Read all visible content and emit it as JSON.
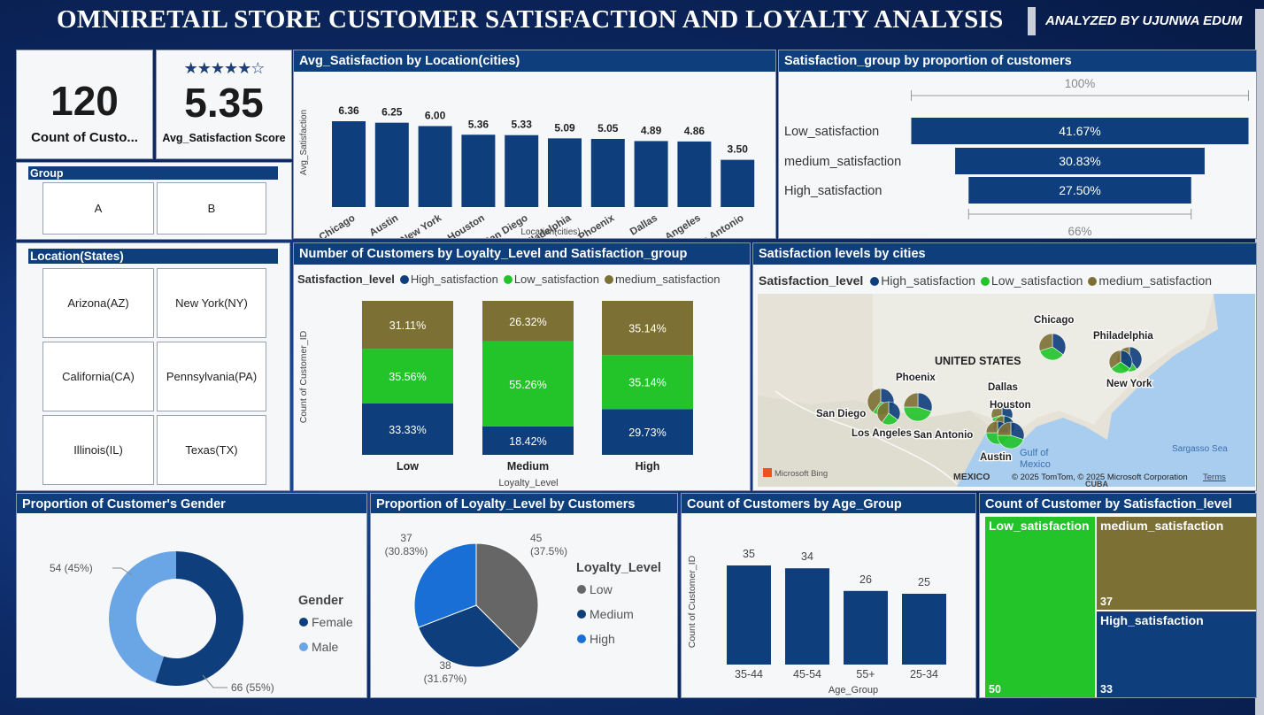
{
  "header": {
    "title": "OMNIRETAIL STORE CUSTOMER SATISFACTION AND LOYALTY ANALYSIS",
    "author": "ANALYZED BY UJUNWA EDUM"
  },
  "colors": {
    "primary": "#0e3f7c",
    "high": "#0e3f7c",
    "low_sat": "#22c42a",
    "medium_sat": "#7d7035",
    "loyalty_low": "#666666",
    "loyalty_medium": "#0e3f7c",
    "loyalty_high": "#1a6fd6",
    "male": "#6aa5e6"
  },
  "kpis": {
    "count": {
      "value": "120",
      "label": "Count of Custo..."
    },
    "satisfaction": {
      "stars": "★★★★★☆",
      "value": "5.35",
      "label": "Avg_Satisfaction Score"
    }
  },
  "group_slicer": {
    "title": "Group",
    "options": [
      "A",
      "B"
    ]
  },
  "state_slicer": {
    "title": "Location(States)",
    "options": [
      "Arizona(AZ)",
      "New York(NY)",
      "California(CA)",
      "Pennsylvania(PA)",
      "Illinois(IL)",
      "Texas(TX)"
    ]
  },
  "map": {
    "title": "Satisfaction levels by cities",
    "legend_title": "Satisfaction_level",
    "legend": [
      "High_satisfaction",
      "Low_satisfaction",
      "medium_satisfaction"
    ],
    "country_label": "UNITED STATES",
    "mexico_label": "MEXICO",
    "gulf_label": "Gulf of\nMexico",
    "sea_label": "Sargasso Sea",
    "cuba_label": "CUBA",
    "attribution": "© 2025 TomTom, © 2025 Microsoft Corporation",
    "terms": "Terms",
    "bing": "Microsoft Bing",
    "cities": [
      "Chicago",
      "Philadelphia",
      "New York",
      "Phoenix",
      "Dallas",
      "Houston",
      "San Diego",
      "Los Angeles",
      "San Antonio",
      "Austin"
    ]
  },
  "chart_data": [
    {
      "id": "avg_sat_by_city",
      "type": "bar",
      "title": "Avg_Satisfaction by Location(cities)",
      "xlabel": "Location(cities)",
      "ylabel": "Avg_Satisfaction",
      "categories": [
        "Chicago",
        "Austin",
        "New York",
        "Houston",
        "San Diego",
        "Philadelphia",
        "Phoenix",
        "Dallas",
        "Los Angeles",
        "San Antonio"
      ],
      "values": [
        6.36,
        6.25,
        6.0,
        5.36,
        5.33,
        5.09,
        5.05,
        4.89,
        4.86,
        3.5
      ],
      "data_labels": [
        "6.36",
        "6.25",
        "6.00",
        "5.36",
        "5.33",
        "5.09",
        "5.05",
        "4.89",
        "4.86",
        "3.50"
      ],
      "ylim": [
        0,
        7
      ]
    },
    {
      "id": "sat_group_funnel",
      "type": "bar",
      "title": "Satisfaction_group by proportion of customers",
      "top_label": "100%",
      "bottom_label": "66%",
      "categories": [
        "Low_satisfaction",
        "medium_satisfaction",
        "High_satisfaction"
      ],
      "values": [
        41.67,
        30.83,
        27.5
      ],
      "data_labels": [
        "41.67%",
        "30.83%",
        "27.50%"
      ]
    },
    {
      "id": "loyalty_by_sat",
      "type": "bar",
      "title": "Number of Customers by Loyalty_Level and Satisfaction_group",
      "legend_title": "Satisfaction_level",
      "xlabel": "Loyalty_Level",
      "ylabel": "Count of Customer_ID",
      "categories": [
        "Low",
        "Medium",
        "High"
      ],
      "series": [
        {
          "name": "High_satisfaction",
          "values": [
            33.33,
            18.42,
            29.73
          ],
          "labels": [
            "33.33%",
            "18.42%",
            "29.73%"
          ]
        },
        {
          "name": "Low_satisfaction",
          "values": [
            35.56,
            55.26,
            35.14
          ],
          "labels": [
            "35.56%",
            "55.26%",
            "35.14%"
          ]
        },
        {
          "name": "medium_satisfaction",
          "values": [
            31.11,
            26.32,
            35.14
          ],
          "labels": [
            "31.11%",
            "26.32%",
            "35.14%"
          ]
        }
      ]
    },
    {
      "id": "gender",
      "type": "pie",
      "title": "Proportion of Customer's Gender",
      "legend_title": "Gender",
      "categories": [
        "Female",
        "Male"
      ],
      "values": [
        66,
        54
      ],
      "data_labels": [
        "66 (55%)",
        "54 (45%)"
      ]
    },
    {
      "id": "loyalty",
      "type": "pie",
      "title": "Proportion of Loyalty_Level by Customers",
      "legend_title": "Loyalty_Level",
      "categories": [
        "Low",
        "Medium",
        "High"
      ],
      "values": [
        45,
        38,
        37
      ],
      "data_labels": [
        [
          "45",
          "(37.5%)"
        ],
        [
          "38",
          "(31.67%)"
        ],
        [
          "37",
          "(30.83%)"
        ]
      ]
    },
    {
      "id": "age_group",
      "type": "bar",
      "title": "Count of Customers by Age_Group",
      "xlabel": "Age_Group",
      "ylabel": "Count of Customer_ID",
      "categories": [
        "35-44",
        "45-54",
        "55+",
        "25-34"
      ],
      "values": [
        35,
        34,
        26,
        25
      ],
      "data_labels": [
        "35",
        "34",
        "26",
        "25"
      ],
      "ylim": [
        0,
        38
      ]
    },
    {
      "id": "sat_treemap",
      "type": "bar",
      "title": "Count of Customer by Satisfaction_level",
      "categories": [
        "Low_satisfaction",
        "medium_satisfaction",
        "High_satisfaction"
      ],
      "values": [
        50,
        37,
        33
      ],
      "data_labels": [
        "50",
        "37",
        "33"
      ]
    }
  ]
}
